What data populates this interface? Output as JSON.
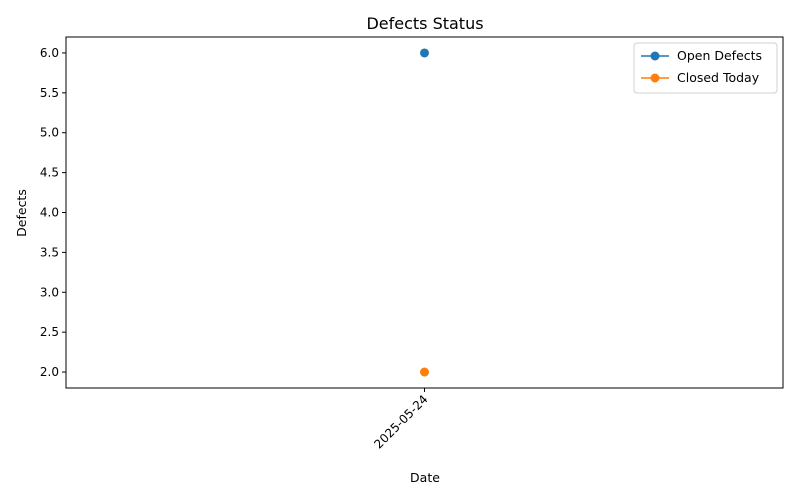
{
  "chart_data": {
    "type": "line",
    "title": "Defects Status",
    "xlabel": "Date",
    "ylabel": "Defects",
    "x": [
      "2025-05-24"
    ],
    "ylim": [
      1.8,
      6.2
    ],
    "yticks": [
      2.0,
      2.5,
      3.0,
      3.5,
      4.0,
      4.5,
      5.0,
      5.5,
      6.0
    ],
    "ytick_labels": [
      "2.0",
      "2.5",
      "3.0",
      "3.5",
      "4.0",
      "4.5",
      "5.0",
      "5.5",
      "6.0"
    ],
    "grid": false,
    "legend_position": "top-right",
    "series": [
      {
        "name": "Open Defects",
        "values": [
          6
        ],
        "color": "#1f77b4"
      },
      {
        "name": "Closed Today",
        "values": [
          2
        ],
        "color": "#ff7f0e"
      }
    ]
  }
}
